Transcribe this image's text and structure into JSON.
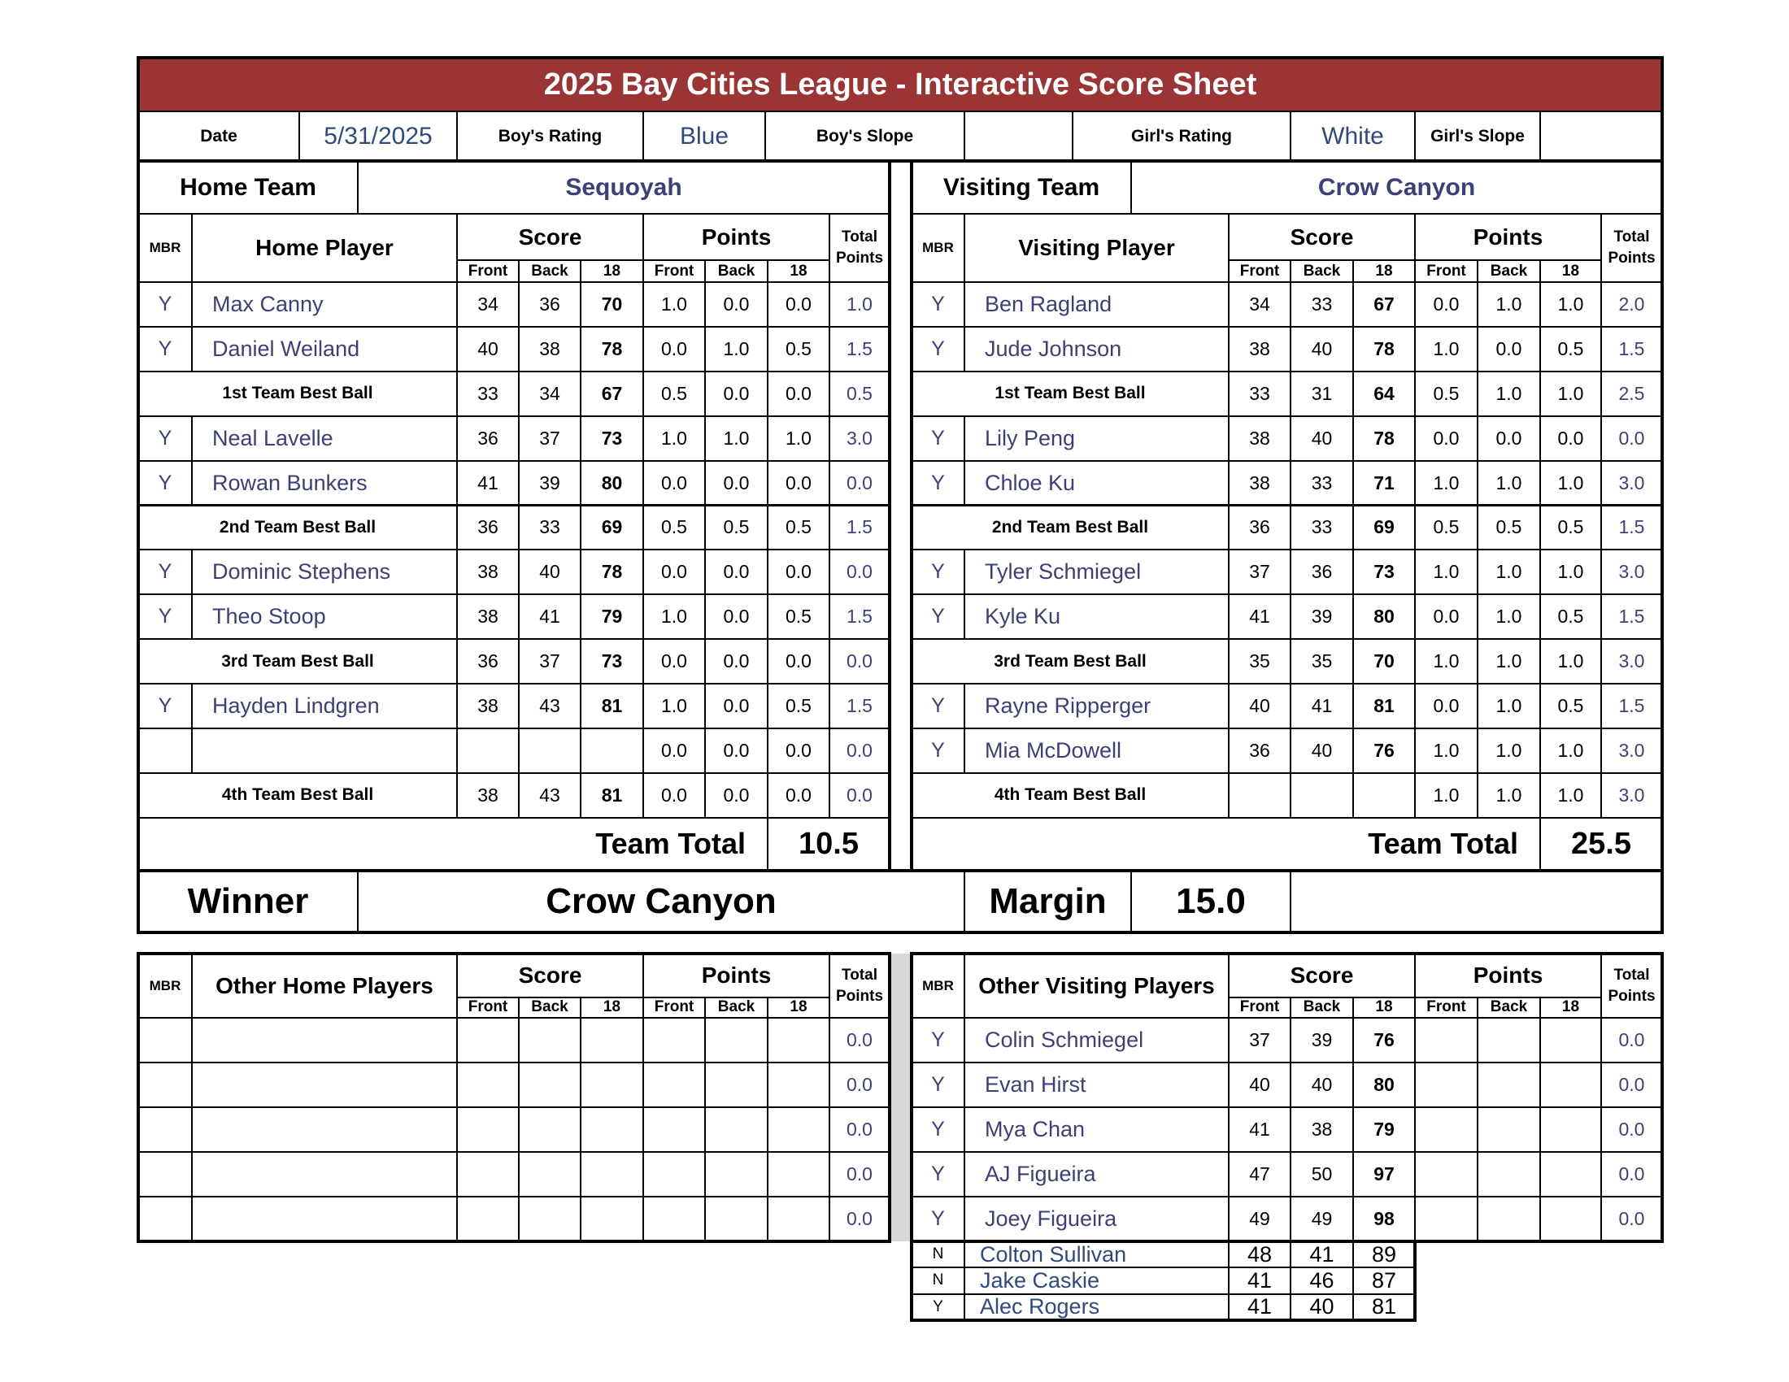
{
  "title": "2025 Bay Cities League - Interactive Score Sheet",
  "info": {
    "date_label": "Date",
    "date": "5/31/2025",
    "boys_rating_label": "Boy's Rating",
    "boys_rating": "Blue",
    "boys_slope_label": "Boy's Slope",
    "boys_slope": "",
    "girls_rating_label": "Girl's Rating",
    "girls_rating": "White",
    "girls_slope_label": "Girl's Slope",
    "girls_slope": ""
  },
  "headers": {
    "mbr": "MBR",
    "score": "Score",
    "points": "Points",
    "total_points": "Total Points",
    "front": "Front",
    "back": "Back",
    "eighteen": "18"
  },
  "home": {
    "team_label": "Home Team",
    "team_name": "Sequoyah",
    "player_header": "Home Player",
    "rows": [
      {
        "kind": "p",
        "c": [
          "Y",
          "Max Canny",
          "34",
          "36",
          "70",
          "1.0",
          "0.0",
          "0.0",
          "1.0"
        ]
      },
      {
        "kind": "p",
        "c": [
          "Y",
          "Daniel Weiland",
          "40",
          "38",
          "78",
          "0.0",
          "1.0",
          "0.5",
          "1.5"
        ]
      },
      {
        "kind": "bb",
        "c": [
          "",
          "1st Team Best Ball",
          "33",
          "34",
          "67",
          "0.5",
          "0.0",
          "0.0",
          "0.5"
        ]
      },
      {
        "kind": "p",
        "c": [
          "Y",
          "Neal Lavelle",
          "36",
          "37",
          "73",
          "1.0",
          "1.0",
          "1.0",
          "3.0"
        ]
      },
      {
        "kind": "p",
        "c": [
          "Y",
          "Rowan Bunkers",
          "41",
          "39",
          "80",
          "0.0",
          "0.0",
          "0.0",
          "0.0"
        ]
      },
      {
        "kind": "bb",
        "c": [
          "",
          "2nd Team Best Ball",
          "36",
          "33",
          "69",
          "0.5",
          "0.5",
          "0.5",
          "1.5"
        ]
      },
      {
        "kind": "p",
        "c": [
          "Y",
          "Dominic Stephens",
          "38",
          "40",
          "78",
          "0.0",
          "0.0",
          "0.0",
          "0.0"
        ]
      },
      {
        "kind": "p",
        "c": [
          "Y",
          "Theo Stoop",
          "38",
          "41",
          "79",
          "1.0",
          "0.0",
          "0.5",
          "1.5"
        ]
      },
      {
        "kind": "bb",
        "c": [
          "",
          "3rd Team Best Ball",
          "36",
          "37",
          "73",
          "0.0",
          "0.0",
          "0.0",
          "0.0"
        ]
      },
      {
        "kind": "p",
        "c": [
          "Y",
          "Hayden Lindgren",
          "38",
          "43",
          "81",
          "1.0",
          "0.0",
          "0.5",
          "1.5"
        ]
      },
      {
        "kind": "p",
        "c": [
          "",
          "",
          "",
          "",
          "",
          "0.0",
          "0.0",
          "0.0",
          "0.0"
        ]
      },
      {
        "kind": "bb",
        "c": [
          "",
          "4th Team Best Ball",
          "38",
          "43",
          "81",
          "0.0",
          "0.0",
          "0.0",
          "0.0"
        ]
      }
    ],
    "team_total_label": "Team Total",
    "team_total": "10.5",
    "other_header": "Other Home Players",
    "other_rows": [
      [
        "",
        "",
        "",
        "",
        "",
        "",
        "",
        "",
        "0.0"
      ],
      [
        "",
        "",
        "",
        "",
        "",
        "",
        "",
        "",
        "0.0"
      ],
      [
        "",
        "",
        "",
        "",
        "",
        "",
        "",
        "",
        "0.0"
      ],
      [
        "",
        "",
        "",
        "",
        "",
        "",
        "",
        "",
        "0.0"
      ],
      [
        "",
        "",
        "",
        "",
        "",
        "",
        "",
        "",
        "0.0"
      ]
    ]
  },
  "visiting": {
    "team_label": "Visiting Team",
    "team_name": "Crow Canyon",
    "player_header": "Visiting Player",
    "rows": [
      {
        "kind": "p",
        "c": [
          "Y",
          "Ben Ragland",
          "34",
          "33",
          "67",
          "0.0",
          "1.0",
          "1.0",
          "2.0"
        ]
      },
      {
        "kind": "p",
        "c": [
          "Y",
          "Jude Johnson",
          "38",
          "40",
          "78",
          "1.0",
          "0.0",
          "0.5",
          "1.5"
        ]
      },
      {
        "kind": "bb",
        "c": [
          "",
          "1st Team Best Ball",
          "33",
          "31",
          "64",
          "0.5",
          "1.0",
          "1.0",
          "2.5"
        ]
      },
      {
        "kind": "p",
        "c": [
          "Y",
          "Lily Peng",
          "38",
          "40",
          "78",
          "0.0",
          "0.0",
          "0.0",
          "0.0"
        ]
      },
      {
        "kind": "p",
        "c": [
          "Y",
          "Chloe Ku",
          "38",
          "33",
          "71",
          "1.0",
          "1.0",
          "1.0",
          "3.0"
        ]
      },
      {
        "kind": "bb",
        "c": [
          "",
          "2nd Team Best Ball",
          "36",
          "33",
          "69",
          "0.5",
          "0.5",
          "0.5",
          "1.5"
        ]
      },
      {
        "kind": "p",
        "c": [
          "Y",
          "Tyler Schmiegel",
          "37",
          "36",
          "73",
          "1.0",
          "1.0",
          "1.0",
          "3.0"
        ]
      },
      {
        "kind": "p",
        "c": [
          "Y",
          "Kyle Ku",
          "41",
          "39",
          "80",
          "0.0",
          "1.0",
          "0.5",
          "1.5"
        ]
      },
      {
        "kind": "bb",
        "c": [
          "",
          "3rd Team Best Ball",
          "35",
          "35",
          "70",
          "1.0",
          "1.0",
          "1.0",
          "3.0"
        ]
      },
      {
        "kind": "p",
        "c": [
          "Y",
          "Rayne Ripperger",
          "40",
          "41",
          "81",
          "0.0",
          "1.0",
          "0.5",
          "1.5"
        ]
      },
      {
        "kind": "p",
        "c": [
          "Y",
          "Mia McDowell",
          "36",
          "40",
          "76",
          "1.0",
          "1.0",
          "1.0",
          "3.0"
        ]
      },
      {
        "kind": "bb",
        "c": [
          "",
          "4th Team Best Ball",
          "",
          "",
          "",
          "1.0",
          "1.0",
          "1.0",
          "3.0"
        ]
      }
    ],
    "team_total_label": "Team Total",
    "team_total": "25.5",
    "other_header": "Other Visiting Players",
    "other_rows": [
      [
        "Y",
        "Colin Schmiegel",
        "37",
        "39",
        "76",
        "",
        "",
        "",
        "0.0"
      ],
      [
        "Y",
        "Evan Hirst",
        "40",
        "40",
        "80",
        "",
        "",
        "",
        "0.0"
      ],
      [
        "Y",
        "Mya Chan",
        "41",
        "38",
        "79",
        "",
        "",
        "",
        "0.0"
      ],
      [
        "Y",
        "AJ Figueira",
        "47",
        "50",
        "97",
        "",
        "",
        "",
        "0.0"
      ],
      [
        "Y",
        "Joey Figueira",
        "49",
        "49",
        "98",
        "",
        "",
        "",
        "0.0"
      ]
    ],
    "extra_rows": [
      [
        "N",
        "Colton Sullivan",
        "48",
        "41",
        "89"
      ],
      [
        "N",
        "Jake Caskie",
        "41",
        "46",
        "87"
      ],
      [
        "Y",
        "Alec Rogers",
        "41",
        "40",
        "81"
      ]
    ]
  },
  "result": {
    "winner_label": "Winner",
    "winner": "Crow Canyon",
    "margin_label": "Margin",
    "margin": "15.0",
    "extra": ""
  },
  "colors": {
    "title_bar": "#9b3535",
    "entry_text": "#3d3f7a",
    "info_value": "#2f4a80"
  }
}
